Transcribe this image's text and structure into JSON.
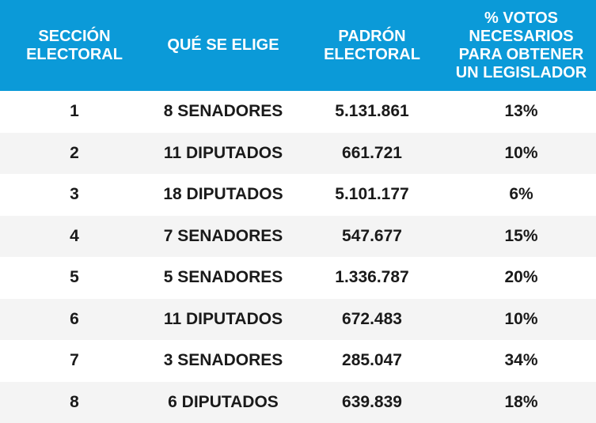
{
  "header": {
    "col1": "SECCIÓN\nELECTORAL",
    "col2": "QUÉ SE ELIGE",
    "col3": "PADRÓN\nELECTORAL",
    "col4": "% VOTOS\nNECESARIOS\nPARA OBTENER\nUN LEGISLADOR"
  },
  "rows": [
    {
      "seccion": "1",
      "elige": "8 SENADORES",
      "padron": "5.131.861",
      "votos": "13%"
    },
    {
      "seccion": "2",
      "elige": "11 DIPUTADOS",
      "padron": "661.721",
      "votos": "10%"
    },
    {
      "seccion": "3",
      "elige": "18 DIPUTADOS",
      "padron": "5.101.177",
      "votos": "6%"
    },
    {
      "seccion": "4",
      "elige": "7 SENADORES",
      "padron": "547.677",
      "votos": "15%"
    },
    {
      "seccion": "5",
      "elige": "5 SENADORES",
      "padron": "1.336.787",
      "votos": "20%"
    },
    {
      "seccion": "6",
      "elige": "11 DIPUTADOS",
      "padron": "672.483",
      "votos": "10%"
    },
    {
      "seccion": "7",
      "elige": "3 SENADORES",
      "padron": "285.047",
      "votos": "34%"
    },
    {
      "seccion": "8",
      "elige": "6 DIPUTADOS",
      "padron": "639.839",
      "votos": "18%"
    }
  ],
  "colors": {
    "header_bg": "#0b9ad8",
    "header_text": "#ffffff",
    "row_alt_bg": "#f4f4f4",
    "cell_text": "#1a1a1a"
  }
}
